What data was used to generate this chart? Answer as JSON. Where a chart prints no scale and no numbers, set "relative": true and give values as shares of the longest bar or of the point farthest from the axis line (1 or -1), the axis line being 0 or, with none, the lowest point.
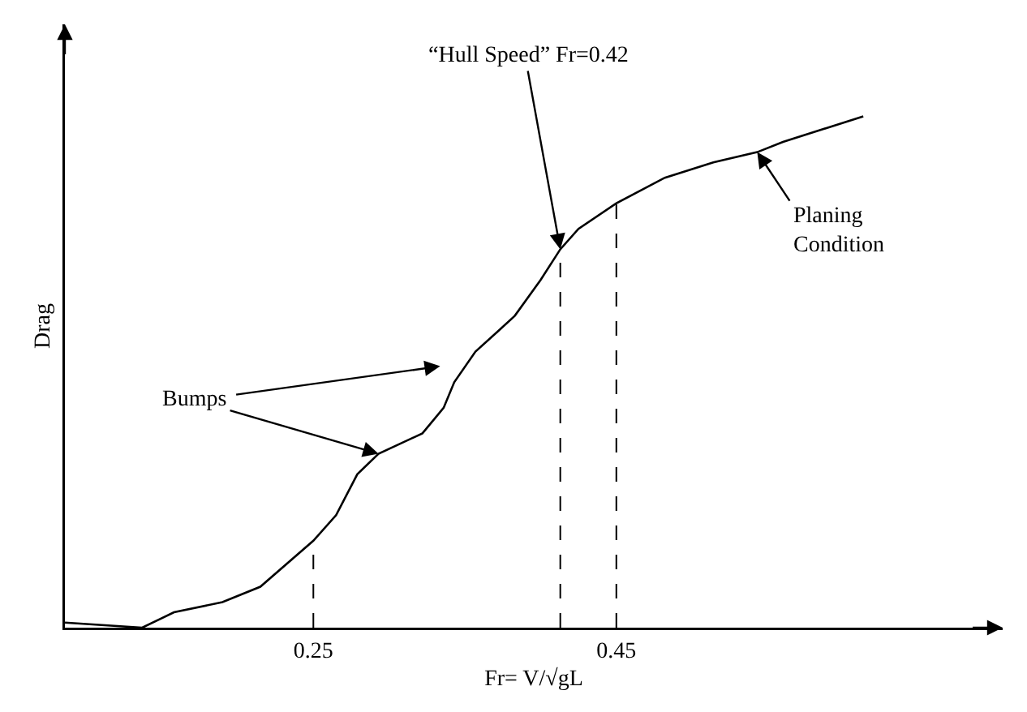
{
  "chart_data": {
    "type": "line",
    "xlabel": "Fr= V/√gL",
    "ylabel": "Drag",
    "relative": true,
    "tick_labels": "x",
    "marker": "none",
    "line_style": "solid",
    "xlim": [
      0.086,
      0.705
    ],
    "xticks": [
      0.25,
      0.45
    ],
    "x": [
      0.086,
      0.137,
      0.158,
      0.19,
      0.215,
      0.25,
      0.265,
      0.279,
      0.293,
      0.322,
      0.336,
      0.343,
      0.357,
      0.372,
      0.383,
      0.4,
      0.413,
      0.425,
      0.45,
      0.482,
      0.514,
      0.543,
      0.56,
      0.613
    ],
    "series": [
      {
        "color": "#000000",
        "values": [
          0.01,
          0.0,
          0.03,
          0.05,
          0.08,
          0.17,
          0.22,
          0.3,
          0.34,
          0.38,
          0.43,
          0.48,
          0.54,
          0.58,
          0.61,
          0.68,
          0.74,
          0.78,
          0.83,
          0.88,
          0.91,
          0.93,
          0.95,
          1
        ]
      }
    ],
    "ref_lines": [
      {
        "axis": "x",
        "value": 0.25,
        "line_style": "dashed",
        "color": "#000000"
      },
      {
        "axis": "x",
        "value": 0.413,
        "line_style": "dashed",
        "color": "#000000"
      },
      {
        "axis": "x",
        "value": 0.45,
        "line_style": "dashed",
        "color": "#000000"
      }
    ],
    "annotations": [
      {
        "text": "Bumps",
        "x": 0.293,
        "y": 0.34
      },
      {
        "text": "“Hull Speed” Fr=0.42",
        "x": 0.413,
        "y": 0.74
      },
      {
        "text": "Planing\nCondition",
        "x": 0.543,
        "y": 0.93
      }
    ]
  }
}
